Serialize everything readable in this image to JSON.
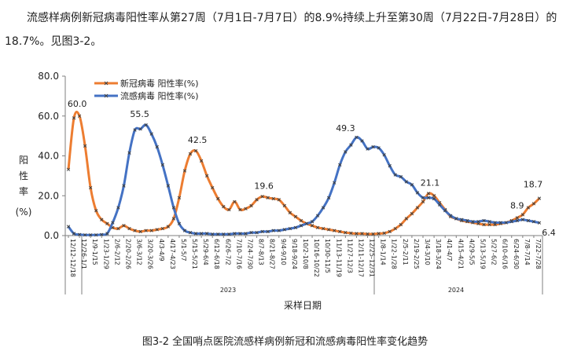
{
  "text": {
    "intro": "流感样病例新冠病毒阳性率从第27周（7月1日-7月7日）的8.9%持续上升至第30周（7月22日-7月28日）的18.7%。见图3-2。",
    "caption": "图3-2  全国哨点医院流感样病例新冠和流感病毒阳性率变化趋势"
  },
  "colors": {
    "covid": "#ED7D31",
    "flu": "#4472C4",
    "axis": "#7F7F7F",
    "marker": "#404040"
  },
  "chart_data": {
    "type": "line",
    "title": "",
    "xlabel": "采样日期",
    "ylabel": "阳性率（%）",
    "ylim": [
      0,
      80
    ],
    "yticks": [
      "0.0",
      "20.0",
      "40.0",
      "60.0",
      "80.0"
    ],
    "grid": false,
    "legend": "top-left",
    "year_labels": [
      "2023",
      "2024"
    ],
    "x_tick_labels": [
      "12/12-12/18",
      "12/26-1/1",
      "1/9-1/15",
      "1/23-1/29",
      "2/6-2/12",
      "2/20-2/26",
      "3/6-3/12",
      "3/20-3/26",
      "4/3-4/9",
      "4/17-4/23",
      "5/1-5/7",
      "5/15-5/21",
      "5/29-6/4",
      "6/12-6/18",
      "6/26-7/2",
      "7/10-7/16",
      "7/24-7/30",
      "8/7-8/13",
      "8/21-8/27",
      "9/4-9/10",
      "9/18-9/24",
      "10/2-10/8",
      "10/16-10/22",
      "10/30-11/5",
      "11/13-11/19",
      "11/27-12/3",
      "12/11-12/17",
      "12/25-12/31",
      "1/8-1/14",
      "1/22-1/28",
      "2/5-2/11",
      "2/19-2/25",
      "3/4-3/10",
      "3/18-3/24",
      "4/1-4/7",
      "4/15-4/21",
      "4/29-5/5",
      "5/13-5/19",
      "5/27-6/2",
      "6/10-6/16",
      "6/24-6/30",
      "7/8-7/14",
      "7/22-7/28"
    ],
    "series": [
      {
        "name": "新冠病毒 阳性率(%)",
        "values": [
          33.2,
          59.0,
          60.0,
          45.0,
          24.0,
          12.5,
          8.0,
          6.0,
          4.0,
          3.5,
          5.0,
          3.5,
          2.5,
          2.0,
          2.5,
          2.5,
          3.0,
          3.5,
          4.5,
          8.5,
          19.0,
          32.5,
          41.0,
          42.5,
          37.5,
          30.0,
          24.0,
          18.5,
          14.5,
          13.0,
          17.0,
          13.0,
          13.5,
          15.0,
          18.0,
          19.6,
          19.0,
          18.5,
          18.0,
          15.0,
          11.5,
          9.5,
          7.5,
          6.0,
          5.0,
          4.0,
          3.5,
          3.0,
          2.5,
          2.0,
          1.5,
          1.2,
          1.0,
          1.0,
          0.8,
          0.8,
          1.0,
          1.2,
          2.0,
          3.5,
          5.5,
          8.5,
          11.0,
          14.0,
          17.0,
          21.1,
          20.0,
          16.5,
          13.0,
          9.5,
          8.5,
          7.5,
          7.0,
          6.5,
          6.0,
          5.5,
          5.5,
          5.5,
          6.0,
          6.5,
          7.5,
          8.9,
          10.5,
          14.0,
          16.0,
          18.7
        ],
        "labels": {
          "2": "60.0",
          "23": "42.5",
          "35": "19.6",
          "65": "21.1",
          "81": "8.9",
          "85": "18.7"
        }
      },
      {
        "name": "流感病毒 阳性率(%)",
        "values": [
          4.5,
          1.0,
          0.5,
          0.3,
          0.3,
          0.3,
          0.5,
          1.0,
          6.5,
          14.0,
          25.0,
          41.5,
          53.0,
          53.5,
          55.5,
          51.0,
          44.5,
          35.5,
          25.0,
          14.0,
          6.0,
          2.5,
          1.5,
          1.0,
          1.0,
          1.0,
          0.7,
          0.7,
          0.7,
          0.7,
          1.0,
          1.0,
          1.0,
          1.5,
          1.5,
          2.0,
          2.0,
          2.5,
          2.5,
          3.0,
          3.5,
          4.0,
          5.0,
          6.0,
          7.0,
          10.0,
          14.0,
          19.0,
          26.5,
          35.5,
          42.0,
          45.5,
          49.3,
          47.5,
          43.5,
          44.5,
          44.0,
          40.5,
          35.0,
          30.5,
          29.5,
          27.0,
          25.5,
          21.5,
          19.0,
          19.0,
          18.5,
          15.5,
          12.5,
          10.0,
          8.5,
          8.0,
          7.5,
          7.0,
          7.0,
          7.5,
          7.0,
          6.5,
          6.5,
          6.5,
          7.0,
          7.5,
          8.0,
          7.5,
          7.0,
          6.4
        ],
        "labels": {
          "14": "55.5",
          "52": "49.3",
          "85": "6.4"
        }
      }
    ]
  }
}
